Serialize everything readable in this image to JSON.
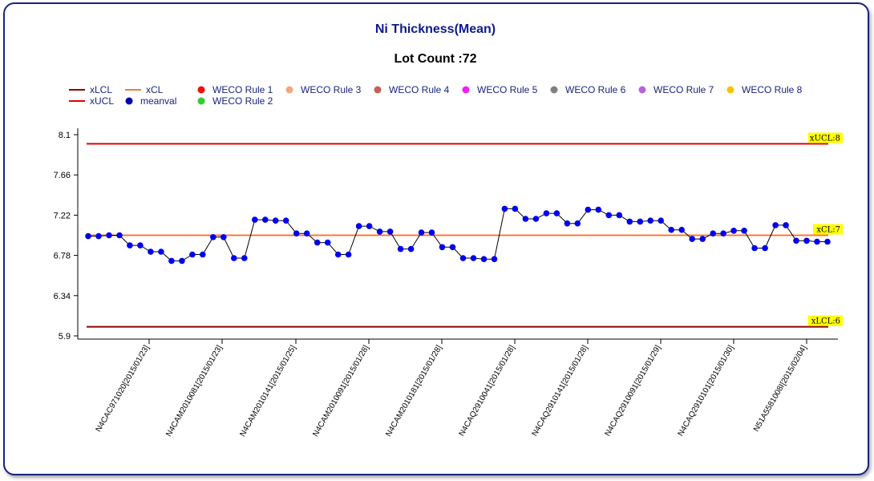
{
  "chart_data": {
    "type": "line",
    "title": "Ni Thickness(Mean)",
    "subtitle": "Lot Count :72",
    "ylim": [
      5.9,
      8.1
    ],
    "y_ticks": [
      5.9,
      6.34,
      6.78,
      7.22,
      7.66,
      8.1
    ],
    "x_ticks": [
      "N4CAC971020[2015/01/23]",
      "N4CAM2010081[2015/01/23]",
      "N4CAM2010141[2015/01/25]",
      "N4CAM2010091[2015/01/28]",
      "N4CAM2010181[2015/01/28]",
      "N4CAQ2910041[2015/01/28]",
      "N4CAQ2910141[2015/01/28]",
      "N4CAQ2910091[2015/01/29]",
      "N4CAQ2910101[2015/01/30]",
      "N51A5581008I[2015/02/04]"
    ],
    "limits": {
      "ucl": {
        "value": 8,
        "label": "xUCL:8",
        "color": "#e00000"
      },
      "cl": {
        "value": 7,
        "label": "xCL:7",
        "color": "#f47a3c"
      },
      "lcl": {
        "value": 6,
        "label": "xLCL:6",
        "color": "#8b0000"
      }
    },
    "label_bg": "#ffff00",
    "series": [
      {
        "name": "meanval",
        "color": "#0000ee",
        "values": [
          6.99,
          6.99,
          7.0,
          7.0,
          6.89,
          6.89,
          6.82,
          6.82,
          6.72,
          6.72,
          6.79,
          6.79,
          6.98,
          6.98,
          6.75,
          6.75,
          7.17,
          7.17,
          7.16,
          7.16,
          7.02,
          7.02,
          6.92,
          6.92,
          6.79,
          6.79,
          7.1,
          7.1,
          7.04,
          7.04,
          6.85,
          6.85,
          7.03,
          7.03,
          6.87,
          6.87,
          6.75,
          6.75,
          6.74,
          6.74,
          7.29,
          7.29,
          7.18,
          7.18,
          7.24,
          7.24,
          7.13,
          7.13,
          7.28,
          7.28,
          7.22,
          7.22,
          7.15,
          7.15,
          7.16,
          7.16,
          7.06,
          7.06,
          6.96,
          6.96,
          7.02,
          7.02,
          7.05,
          7.05,
          6.86,
          6.86,
          7.11,
          7.11,
          6.94,
          6.94,
          6.93,
          6.93
        ]
      }
    ],
    "legend": [
      {
        "label": "xLCL",
        "kind": "line",
        "color": "#8b0000"
      },
      {
        "label": "xCL",
        "kind": "line",
        "color": "#f47a3c"
      },
      {
        "label": "WECO Rule 1",
        "kind": "dot",
        "color": "#ee1111"
      },
      {
        "label": "WECO Rule 3",
        "kind": "dot",
        "color": "#f4a582"
      },
      {
        "label": "WECO Rule 4",
        "kind": "dot",
        "color": "#c0605a"
      },
      {
        "label": "WECO Rule 5",
        "kind": "dot",
        "color": "#ee22ee"
      },
      {
        "label": "WECO Rule 6",
        "kind": "dot",
        "color": "#808080"
      },
      {
        "label": "WECO Rule 7",
        "kind": "dot",
        "color": "#b366d9"
      },
      {
        "label": "WECO Rule 8",
        "kind": "dot",
        "color": "#f2c500"
      },
      {
        "label": "xUCL",
        "kind": "line",
        "color": "#e00000"
      },
      {
        "label": "meanval",
        "kind": "dot",
        "color": "#0000bb"
      },
      {
        "label": "WECO Rule 2",
        "kind": "dot",
        "color": "#33cc33"
      }
    ],
    "legend_placement": "top-left",
    "grid": false
  }
}
